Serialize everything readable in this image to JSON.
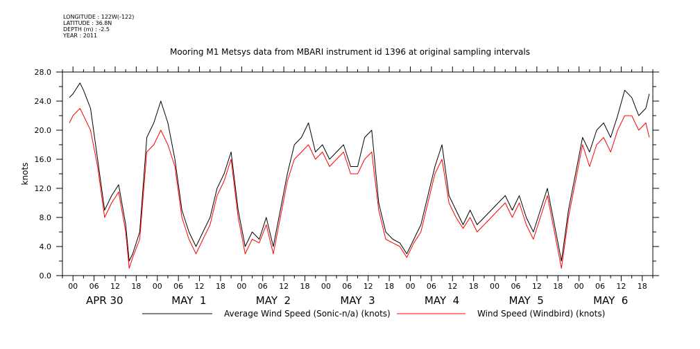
{
  "header": {
    "meta_lines": [
      "LONGITUDE : 122W(-122)",
      "LATITUDE : 36.8N",
      "DEPTH (m) : -2.5",
      "YEAR : 2011"
    ],
    "title": "Mooring M1 Metsys data from MBARI instrument id 1396 at original sampling intervals"
  },
  "chart_data": {
    "type": "line",
    "title": "Mooring M1 Metsys data from MBARI instrument id 1396 at original sampling intervals",
    "ylabel": "knots",
    "xlabel": "",
    "ylim": [
      0,
      28
    ],
    "yticks": [
      "0.0",
      "4.0",
      "8.0",
      "12.0",
      "16.0",
      "20.0",
      "24.0",
      "28.0"
    ],
    "xlim_hours": [
      -3,
      165
    ],
    "hour_tick_labels": [
      "00",
      "06",
      "12",
      "18",
      "00",
      "06",
      "12",
      "18",
      "00",
      "06",
      "12",
      "18",
      "00",
      "06",
      "12",
      "18",
      "00",
      "06",
      "12",
      "18",
      "00",
      "06",
      "12",
      "18",
      "00",
      "06",
      "12",
      "18"
    ],
    "day_labels": [
      "APR 30",
      "MAY  1",
      "MAY  2",
      "MAY  3",
      "MAY  4",
      "MAY  5",
      "MAY  6"
    ],
    "grid": false,
    "legend_position": "bottom",
    "x_units": "hours since APR 30 00:00",
    "series": [
      {
        "name": "Average Wind Speed (Sonic-n/a) (knots)",
        "color": "#000000",
        "x": [
          -1,
          0,
          2,
          3,
          5,
          7,
          9,
          11,
          13,
          15,
          16,
          17,
          19,
          21,
          23,
          25,
          27,
          29,
          31,
          33,
          35,
          37,
          39,
          41,
          43,
          45,
          47,
          49,
          51,
          53,
          55,
          57,
          59,
          61,
          63,
          65,
          67,
          69,
          71,
          73,
          75,
          77,
          79,
          81,
          83,
          85,
          87,
          89,
          91,
          93,
          95,
          97,
          99,
          101,
          103,
          105,
          107,
          109,
          111,
          113,
          115,
          117,
          119,
          121,
          123,
          125,
          127,
          129,
          131,
          133,
          135,
          137,
          139,
          141,
          143,
          145,
          147,
          149,
          151,
          153,
          155,
          157,
          159,
          161,
          163,
          164
        ],
        "values": [
          24.5,
          25,
          26.5,
          25.5,
          23,
          16,
          9,
          11,
          12.5,
          7,
          2,
          3,
          6,
          19,
          21,
          24,
          21,
          16,
          9,
          6,
          4,
          6,
          8,
          12,
          14,
          17,
          9,
          4,
          6,
          5,
          8,
          4,
          9,
          14,
          18,
          19,
          21,
          17,
          18,
          16,
          17,
          18,
          15,
          15,
          19,
          20,
          10,
          6,
          5,
          4.5,
          3,
          5,
          7,
          11,
          15,
          18,
          11,
          9,
          7,
          9,
          7,
          8,
          9,
          10,
          11,
          9,
          11,
          8,
          6,
          9,
          12,
          7,
          2,
          9,
          14,
          19,
          17,
          20,
          21,
          19,
          22,
          25.5,
          24.5,
          22,
          23,
          25
        ]
      },
      {
        "name": "Wind Speed (Windbird) (knots)",
        "color": "#ff0000",
        "x": [
          -1,
          0,
          2,
          3,
          5,
          7,
          9,
          11,
          13,
          15,
          16,
          17,
          19,
          21,
          23,
          25,
          27,
          29,
          31,
          33,
          35,
          37,
          39,
          41,
          43,
          45,
          47,
          49,
          51,
          53,
          55,
          57,
          59,
          61,
          63,
          65,
          67,
          69,
          71,
          73,
          75,
          77,
          79,
          81,
          83,
          85,
          87,
          89,
          91,
          93,
          95,
          97,
          99,
          101,
          103,
          105,
          107,
          109,
          111,
          113,
          115,
          117,
          119,
          121,
          123,
          125,
          127,
          129,
          131,
          133,
          135,
          137,
          139,
          141,
          143,
          145,
          147,
          149,
          151,
          153,
          155,
          157,
          159,
          161,
          163,
          164
        ],
        "values": [
          21,
          22,
          23,
          22,
          20,
          15,
          8,
          10,
          11.5,
          6,
          1,
          2.5,
          5,
          17,
          18,
          20,
          18,
          15,
          8,
          5,
          3,
          5,
          7,
          11,
          13,
          16,
          8,
          3,
          5,
          4.5,
          7,
          3,
          8,
          13,
          16,
          17,
          18,
          16,
          17,
          15,
          16,
          17,
          14,
          14,
          16,
          17,
          9,
          5,
          4.5,
          4,
          2.5,
          4.5,
          6,
          10,
          14,
          16,
          10,
          8,
          6.5,
          8,
          6,
          7,
          8,
          9,
          10,
          8,
          10,
          7,
          5,
          8,
          11,
          6,
          1,
          8,
          13,
          18,
          15,
          18,
          19,
          17,
          20,
          22,
          22,
          20,
          21,
          19
        ]
      }
    ]
  }
}
